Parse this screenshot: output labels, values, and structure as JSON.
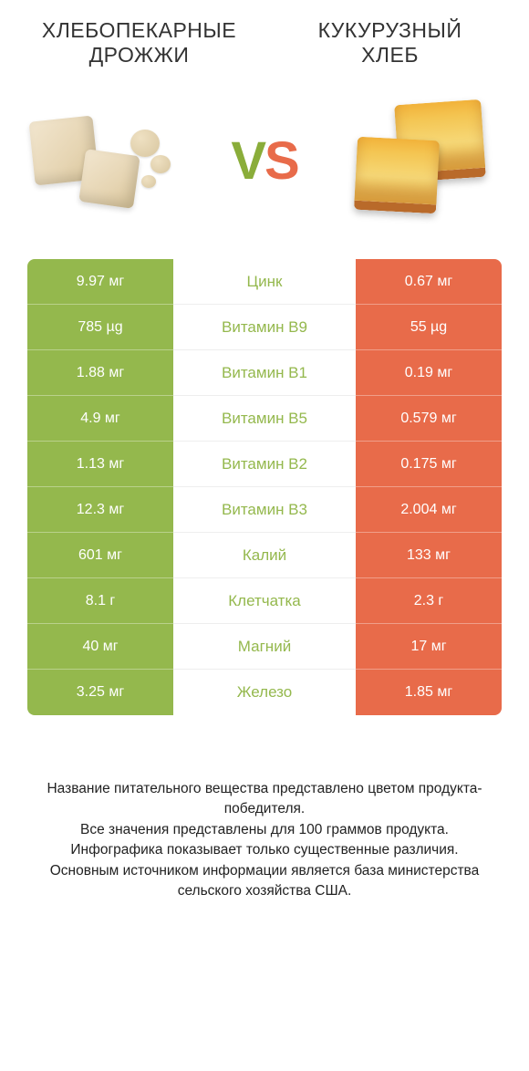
{
  "header": {
    "left_title": "ХЛЕБОПЕКАРНЫЕ ДРОЖЖИ",
    "right_title": "КУКУРУЗНЫЙ ХЛЕБ",
    "vs_v": "V",
    "vs_s": "S"
  },
  "colors": {
    "left": "#94b84d",
    "right": "#e86b4a",
    "center_text": "#94b84d",
    "background": "#ffffff",
    "title_text": "#333333"
  },
  "table": {
    "rows": [
      {
        "left": "9.97 мг",
        "label": "Цинк",
        "right": "0.67 мг"
      },
      {
        "left": "785 µg",
        "label": "Витамин B9",
        "right": "55 µg"
      },
      {
        "left": "1.88 мг",
        "label": "Витамин B1",
        "right": "0.19 мг"
      },
      {
        "left": "4.9 мг",
        "label": "Витамин B5",
        "right": "0.579 мг"
      },
      {
        "left": "1.13 мг",
        "label": "Витамин B2",
        "right": "0.175 мг"
      },
      {
        "left": "12.3 мг",
        "label": "Витамин B3",
        "right": "2.004 мг"
      },
      {
        "left": "601 мг",
        "label": "Калий",
        "right": "133 мг"
      },
      {
        "left": "8.1 г",
        "label": "Клетчатка",
        "right": "2.3 г"
      },
      {
        "left": "40 мг",
        "label": "Магний",
        "right": "17 мг"
      },
      {
        "left": "3.25 мг",
        "label": "Железо",
        "right": "1.85 мг"
      }
    ]
  },
  "footnotes": {
    "l1": "Название питательного вещества представлено цветом продукта-победителя.",
    "l2": "Все значения представлены для 100 граммов продукта.",
    "l3": "Инфографика показывает только существенные различия.",
    "l4": "Основным источником информации является база министерства сельского хозяйства США."
  }
}
